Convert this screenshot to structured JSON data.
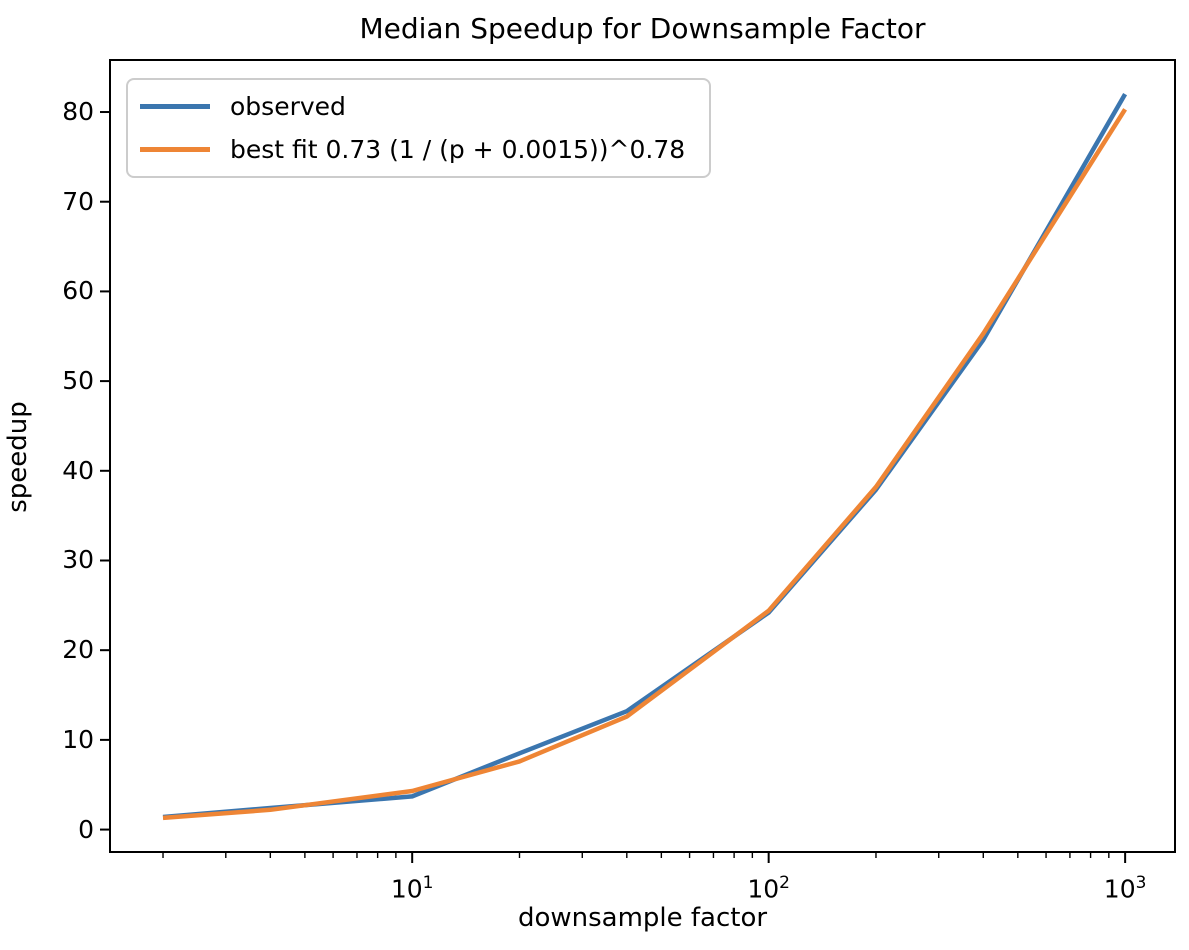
{
  "chart_data": {
    "type": "line",
    "title": "Median Speedup for Downsample Factor",
    "xlabel": "downsample factor",
    "ylabel": "speedup",
    "x_scale": "log",
    "y_scale": "linear",
    "grid": false,
    "legend_position": "upper left",
    "background": "#ffffff",
    "axis_color": "#000000",
    "x": [
      2,
      4,
      10,
      20,
      40,
      100,
      200,
      400,
      1000
    ],
    "series": [
      {
        "name": "observed",
        "color": "#3b76af",
        "values": [
          1.4,
          2.4,
          3.7,
          8.5,
          13.2,
          24.2,
          37.9,
          54.6,
          82.0
        ]
      },
      {
        "name": "best fit 0.73 (1 / (p + 0.0015))^0.78",
        "color": "#ee8535",
        "values": [
          1.3,
          2.2,
          4.3,
          7.6,
          12.6,
          24.4,
          38.2,
          55.3,
          80.3
        ]
      }
    ],
    "xlim": [
      1.42,
      1380
    ],
    "ylim": [
      -2.5,
      85.8
    ],
    "yticks": [
      0,
      10,
      20,
      30,
      40,
      50,
      60,
      70,
      80
    ],
    "xticks": [
      {
        "value": 10,
        "base": "10",
        "exp": "1"
      },
      {
        "value": 100,
        "base": "10",
        "exp": "2"
      },
      {
        "value": 1000,
        "base": "10",
        "exp": "3"
      }
    ]
  }
}
